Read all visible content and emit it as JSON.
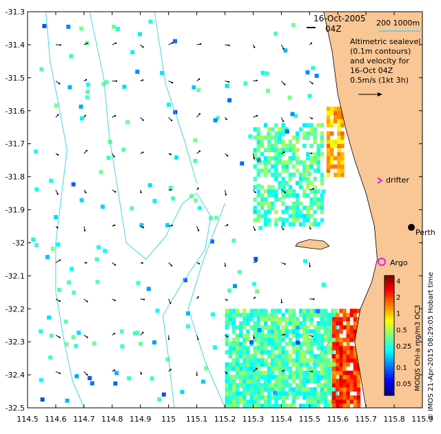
{
  "map": {
    "title_date": "16-Oct-2005",
    "title_time": "04Z",
    "depth_legend": "200  1000m",
    "description_lines": [
      "Altimetric sealevel",
      "(0.1m contours)",
      "and velocity for",
      "16-Oct 04Z",
      "0.5m/s (1kt 3h)"
    ],
    "credit": "© IMOS 21-Apr-2015 08:29:05 Hobart time",
    "colorbar_title": "MODIS Chl-a mg/m3 OC3",
    "places": [
      {
        "name": "Perth",
        "lon": 115.86,
        "lat": -31.95
      },
      {
        "name": "drifter",
        "lon": 115.75,
        "lat": -31.81
      },
      {
        "name": "Argo",
        "lon": 115.74,
        "lat": -32.07
      }
    ],
    "colors": {
      "land": "#f9c695",
      "ocean": "#ffffff",
      "bathymetry": "#44d4e0",
      "argo_marker": "#e020e0",
      "drifter_marker": "#e020e0"
    }
  },
  "chart_data": {
    "type": "heatmap",
    "xlim": [
      114.5,
      115.9
    ],
    "ylim": [
      -32.5,
      -31.3
    ],
    "x_ticks": [
      "114.5",
      "114.6",
      "114.7",
      "114.8",
      "114.9",
      "115",
      "115.1",
      "115.2",
      "115.3",
      "115.4",
      "115.5",
      "115.6",
      "115.7",
      "115.8",
      "115.9"
    ],
    "y_ticks": [
      "-31.3",
      "-31.4",
      "-31.5",
      "-31.6",
      "-31.7",
      "-31.8",
      "-31.9",
      "-32",
      "-32.1",
      "-32.2",
      "-32.3",
      "-32.4",
      "-32.5"
    ],
    "colorbar_ticks": [
      "4",
      "2",
      "1",
      "0.5",
      "0.25",
      "0.1",
      "0.05"
    ],
    "colorbar_range": [
      0.03,
      5
    ],
    "colorbar_scale": "log",
    "chl_patches": [
      {
        "region": "south shelf",
        "lon": [
          115.2,
          115.6
        ],
        "lat": [
          -32.5,
          -32.2
        ],
        "chl": 0.3
      },
      {
        "region": "mid shelf",
        "lon": [
          115.3,
          115.55
        ],
        "lat": [
          -31.95,
          -31.65
        ],
        "chl": 0.3
      },
      {
        "region": "coastal strip south",
        "lon": [
          115.58,
          115.68
        ],
        "lat": [
          -32.5,
          -32.2
        ],
        "chl": 2
      },
      {
        "region": "coastal strip north",
        "lon": [
          115.56,
          115.62
        ],
        "lat": [
          -31.8,
          -31.6
        ],
        "chl": 1
      }
    ]
  }
}
